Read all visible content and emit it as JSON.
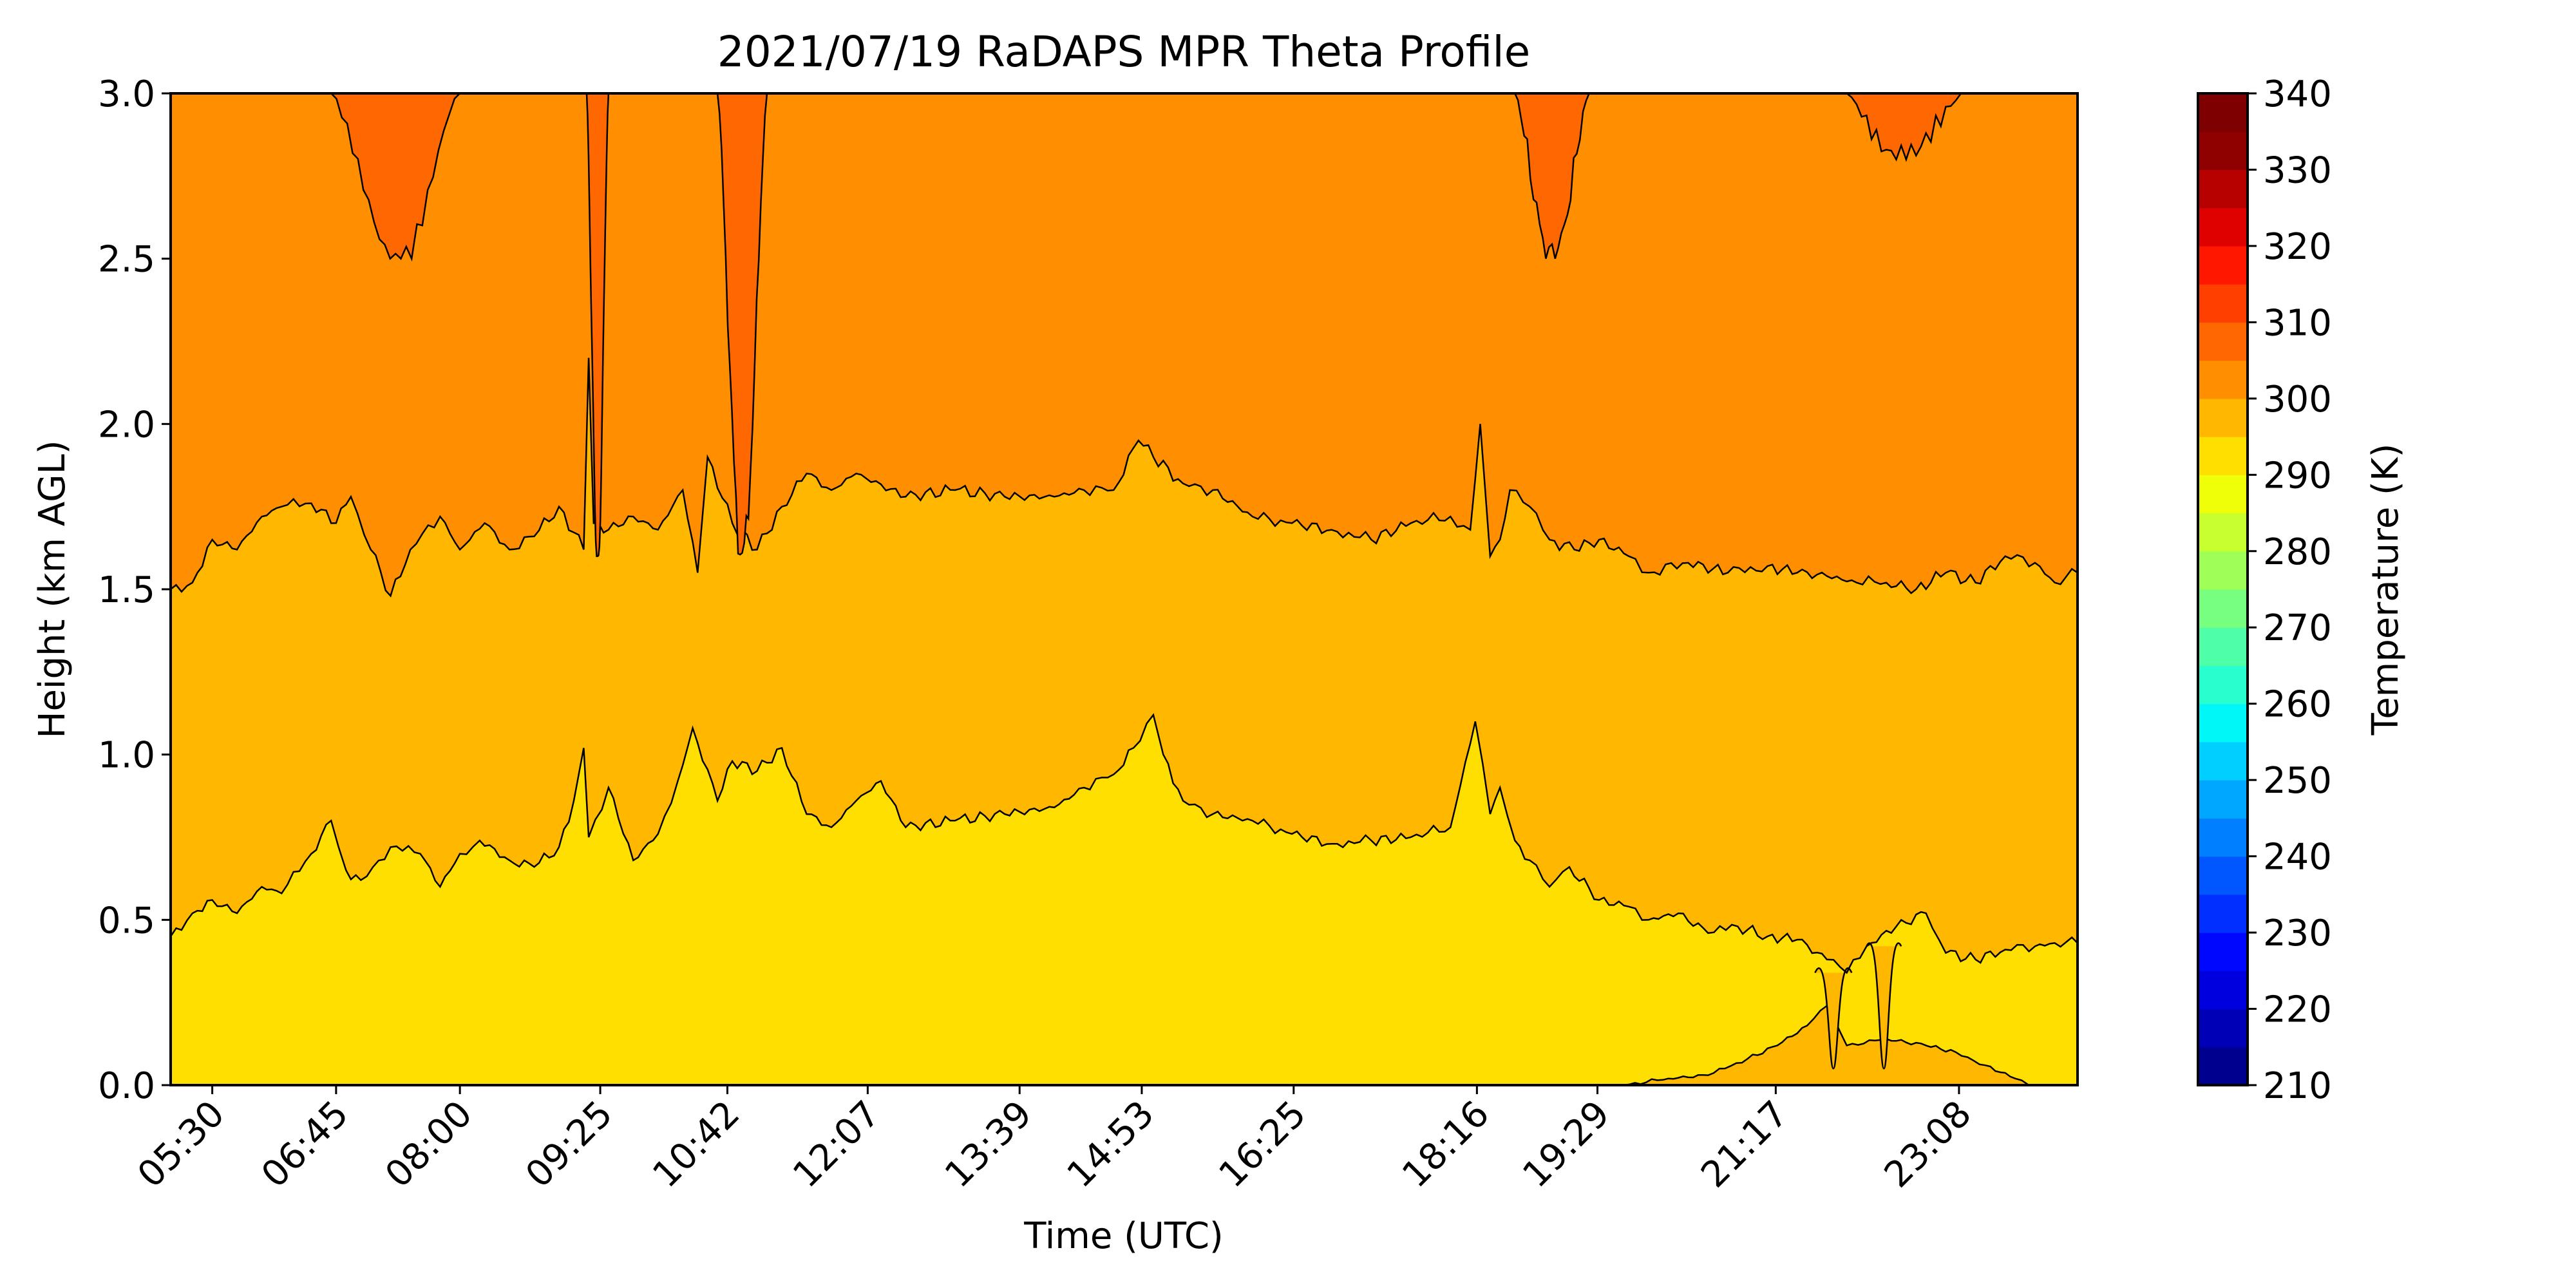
{
  "chart_data": {
    "type": "heatmap",
    "title": "2021/07/19 RaDAPS MPR Theta Profile",
    "xlabel": "Time (UTC)",
    "ylabel": "Height (km AGL)",
    "colorbar_label": "Temperature (K)",
    "x_range_hours": [
      5.08,
      24.33
    ],
    "ylim": [
      0.0,
      3.0
    ],
    "x_ticks": [
      {
        "label": "05:30",
        "hour": 5.5
      },
      {
        "label": "06:45",
        "hour": 6.75
      },
      {
        "label": "08:00",
        "hour": 8.0
      },
      {
        "label": "09:25",
        "hour": 9.4167
      },
      {
        "label": "10:42",
        "hour": 10.7
      },
      {
        "label": "12:07",
        "hour": 12.1167
      },
      {
        "label": "13:39",
        "hour": 13.65
      },
      {
        "label": "14:53",
        "hour": 14.8833
      },
      {
        "label": "16:25",
        "hour": 16.4167
      },
      {
        "label": "18:16",
        "hour": 18.2667
      },
      {
        "label": "19:29",
        "hour": 19.4833
      },
      {
        "label": "21:17",
        "hour": 21.2833
      },
      {
        "label": "23:08",
        "hour": 23.1333
      }
    ],
    "y_ticks": [
      {
        "label": "0.0",
        "value": 0.0
      },
      {
        "label": "0.5",
        "value": 0.5
      },
      {
        "label": "1.0",
        "value": 1.0
      },
      {
        "label": "1.5",
        "value": 1.5
      },
      {
        "label": "2.0",
        "value": 2.0
      },
      {
        "label": "2.5",
        "value": 2.5
      },
      {
        "label": "3.0",
        "value": 3.0
      }
    ],
    "colorbar": {
      "range": [
        210,
        340
      ],
      "level_step": 5,
      "tick_values": [
        210,
        220,
        230,
        240,
        250,
        260,
        270,
        280,
        290,
        300,
        310,
        320,
        330,
        340
      ],
      "tick_labels": [
        "210",
        "220",
        "230",
        "240",
        "250",
        "260",
        "270",
        "280",
        "290",
        "300",
        "310",
        "320",
        "330",
        "340"
      ],
      "colors": [
        "#00008f",
        "#0000b7",
        "#0000df",
        "#0007ff",
        "#002fff",
        "#0057ff",
        "#007fff",
        "#00a7ff",
        "#00cfff",
        "#00f7f7",
        "#27ffcf",
        "#4fffa7",
        "#77ff7f",
        "#9fff57",
        "#c7ff2f",
        "#efff07",
        "#ffdf00",
        "#ffb700",
        "#ff8f00",
        "#ff6700",
        "#ff3f00",
        "#ff1700",
        "#df0000",
        "#b70000",
        "#8f0000",
        "#7f0000"
      ]
    },
    "field_bands": [
      {
        "range_K": [
          290,
          295
        ],
        "color": "#ffdf00"
      },
      {
        "range_K": [
          295,
          300
        ],
        "color": "#ffb700"
      },
      {
        "range_K": [
          300,
          310
        ],
        "color": "#ff8f00"
      },
      {
        "range_K": [
          310,
          315
        ],
        "color": "#ff6700"
      }
    ],
    "contours": {
      "lower": {
        "hours": [
          5.08,
          5.3,
          5.5,
          5.75,
          6.0,
          6.2,
          6.5,
          6.7,
          6.85,
          7.0,
          7.3,
          7.6,
          7.8,
          8.0,
          8.2,
          8.5,
          8.75,
          9.0,
          9.15,
          9.25,
          9.3,
          9.5,
          9.75,
          10.0,
          10.2,
          10.35,
          10.6,
          10.75,
          11.0,
          11.25,
          11.5,
          11.75,
          12.0,
          12.25,
          12.5,
          13.0,
          13.5,
          14.0,
          14.3,
          14.6,
          14.8,
          15.0,
          15.1,
          15.3,
          15.6,
          16.0,
          16.4,
          16.8,
          17.2,
          17.6,
          18.0,
          18.25,
          18.4,
          18.5,
          18.65,
          18.8,
          19.0,
          19.2,
          19.5,
          19.8,
          20.0,
          20.3,
          20.6,
          20.9,
          21.2,
          21.5,
          21.8,
          22.0,
          22.2,
          22.5,
          22.8,
          23.0,
          23.3,
          23.6,
          23.9,
          24.1,
          24.33
        ],
        "km": [
          0.45,
          0.52,
          0.56,
          0.52,
          0.6,
          0.58,
          0.7,
          0.8,
          0.65,
          0.62,
          0.72,
          0.7,
          0.6,
          0.7,
          0.74,
          0.68,
          0.66,
          0.72,
          0.86,
          1.02,
          0.75,
          0.9,
          0.68,
          0.76,
          0.92,
          1.08,
          0.86,
          0.98,
          0.95,
          1.02,
          0.82,
          0.78,
          0.86,
          0.92,
          0.78,
          0.8,
          0.82,
          0.84,
          0.9,
          0.94,
          1.02,
          1.12,
          1.0,
          0.86,
          0.82,
          0.8,
          0.76,
          0.73,
          0.74,
          0.75,
          0.78,
          1.1,
          0.82,
          0.9,
          0.74,
          0.68,
          0.6,
          0.66,
          0.56,
          0.54,
          0.5,
          0.52,
          0.46,
          0.48,
          0.45,
          0.44,
          0.38,
          0.34,
          0.42,
          0.48,
          0.52,
          0.4,
          0.38,
          0.41,
          0.42,
          0.43,
          0.43
        ]
      },
      "upper": {
        "hours": [
          5.08,
          5.3,
          5.5,
          5.75,
          6.0,
          6.2,
          6.5,
          6.75,
          6.9,
          7.1,
          7.3,
          7.5,
          7.8,
          8.0,
          8.25,
          8.5,
          8.75,
          9.0,
          9.25,
          9.3,
          9.35,
          9.5,
          9.75,
          10.0,
          10.25,
          10.4,
          10.5,
          10.75,
          11.0,
          11.25,
          11.5,
          11.75,
          12.0,
          12.5,
          13.0,
          13.5,
          14.0,
          14.3,
          14.6,
          14.85,
          15.0,
          15.3,
          15.6,
          16.0,
          16.4,
          16.8,
          17.2,
          17.6,
          18.0,
          18.2,
          18.3,
          18.4,
          18.5,
          18.6,
          18.8,
          19.0,
          19.25,
          19.5,
          19.8,
          20.0,
          20.4,
          20.8,
          21.2,
          21.5,
          21.8,
          22.1,
          22.4,
          22.7,
          23.0,
          23.3,
          23.6,
          23.9,
          24.1,
          24.33
        ],
        "km": [
          1.5,
          1.52,
          1.65,
          1.62,
          1.72,
          1.75,
          1.76,
          1.7,
          1.78,
          1.62,
          1.48,
          1.62,
          1.72,
          1.62,
          1.7,
          1.62,
          1.66,
          1.75,
          1.62,
          2.2,
          1.7,
          1.68,
          1.72,
          1.68,
          1.8,
          1.55,
          1.9,
          1.7,
          1.62,
          1.75,
          1.85,
          1.8,
          1.85,
          1.78,
          1.8,
          1.78,
          1.78,
          1.8,
          1.8,
          1.95,
          1.9,
          1.82,
          1.8,
          1.72,
          1.7,
          1.68,
          1.65,
          1.7,
          1.72,
          1.68,
          2.0,
          1.6,
          1.65,
          1.8,
          1.75,
          1.65,
          1.62,
          1.65,
          1.6,
          1.55,
          1.58,
          1.55,
          1.57,
          1.55,
          1.54,
          1.52,
          1.52,
          1.5,
          1.55,
          1.52,
          1.6,
          1.58,
          1.52,
          1.55
        ]
      },
      "near_surface": {
        "hours": [
          19.75,
          20.2,
          20.6,
          21.0,
          21.3,
          21.6,
          21.8,
          22.0,
          22.4,
          22.8,
          23.1,
          23.4,
          23.7,
          23.9
        ],
        "km": [
          0.0,
          0.02,
          0.03,
          0.08,
          0.12,
          0.18,
          0.24,
          0.12,
          0.14,
          0.12,
          0.1,
          0.06,
          0.02,
          0.0
        ]
      },
      "spikes": [
        {
          "h0": 21.68,
          "h1": 22.05,
          "lower_km": 0.34,
          "apex_km": 0.43
        },
        {
          "h0": 22.2,
          "h1": 22.55,
          "lower_km": 0.42,
          "apex_km": 0.5
        }
      ]
    },
    "warm_patches_310K": [
      {
        "h0": 6.7,
        "h1": 8.0,
        "bottom_km": 2.5
      },
      {
        "h0": 9.28,
        "h1": 9.5,
        "bottom_km": 1.6
      },
      {
        "h0": 10.6,
        "h1": 11.1,
        "bottom_km": 1.6
      },
      {
        "h0": 18.65,
        "h1": 19.4,
        "bottom_km": 2.5
      },
      {
        "h0": 22.0,
        "h1": 23.2,
        "bottom_km": 2.8
      }
    ]
  }
}
